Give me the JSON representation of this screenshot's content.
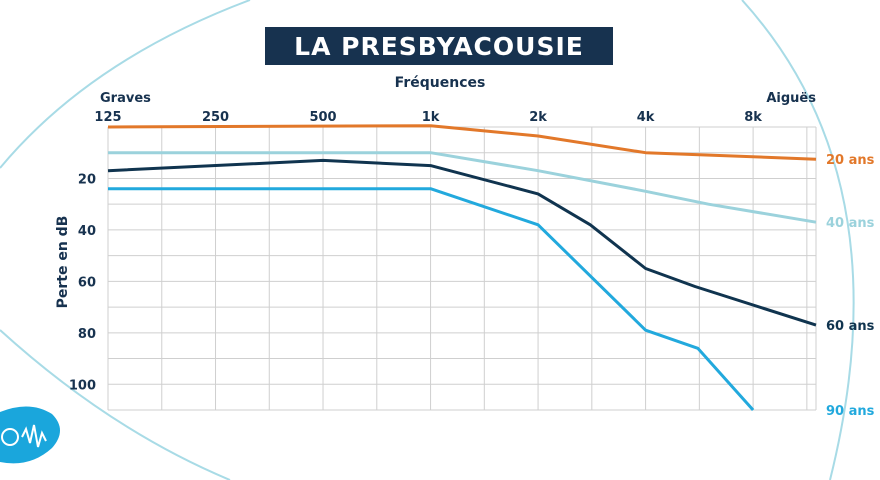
{
  "title": "LA PRESBYACOUSIE",
  "colors": {
    "navy": "#17324f",
    "orange": "#e2782a",
    "light_teal": "#9bd2dc",
    "dark_navy": "#10344f",
    "cyan": "#22a9dd",
    "grid": "#cfcfcf",
    "decor_arc": "#a8dbe6"
  },
  "logo": {
    "icon": "ear-soundwave-logo-icon"
  },
  "chart_data": {
    "type": "line",
    "title": "LA PRESBYACOUSIE",
    "xlabel": "Fréquences",
    "ylabel": "Perte en dB",
    "x_left_label": "Graves",
    "x_right_label": "Aiguës",
    "x_ticks": [
      "125",
      "250",
      "500",
      "1k",
      "2k",
      "4k",
      "8k"
    ],
    "x_tick_values": [
      125,
      250,
      500,
      1000,
      2000,
      4000,
      8000
    ],
    "xlim": [
      125,
      12000
    ],
    "x_scale": "log",
    "y_ticks": [
      "20",
      "40",
      "60",
      "80",
      "100"
    ],
    "y_tick_values": [
      20,
      40,
      60,
      80,
      100
    ],
    "ylim": [
      0,
      110
    ],
    "y_inverted": true,
    "grid": true,
    "series": [
      {
        "name": "20 ans",
        "color": "#e2782a",
        "x": [
          125,
          1000,
          2000,
          4000,
          12000
        ],
        "y": [
          0,
          -0.5,
          3.5,
          10,
          12.5
        ]
      },
      {
        "name": "40 ans",
        "color": "#9bd2dc",
        "x": [
          125,
          1000,
          2000,
          4000,
          6000,
          12000
        ],
        "y": [
          10,
          10,
          17,
          25,
          30,
          37
        ]
      },
      {
        "name": "60 ans",
        "color": "#10344f",
        "x": [
          125,
          500,
          1000,
          2000,
          2800,
          4000,
          5500,
          12000
        ],
        "y": [
          17,
          13,
          15,
          26,
          38,
          55,
          62,
          77
        ]
      },
      {
        "name": "90 ans",
        "color": "#22a9dd",
        "x": [
          125,
          1000,
          2000,
          4000,
          5600,
          8000
        ],
        "y": [
          24,
          24,
          38,
          79,
          86,
          110
        ]
      }
    ]
  }
}
